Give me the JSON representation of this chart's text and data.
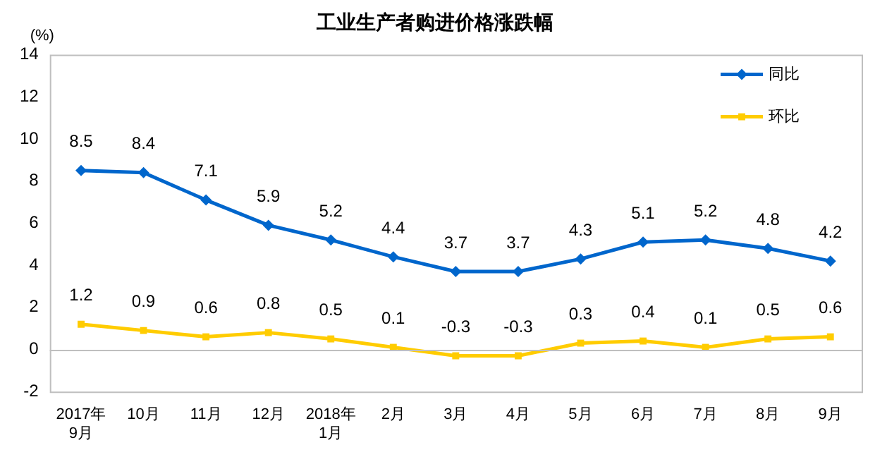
{
  "chart_data": {
    "type": "line",
    "title": "工业生产者购进价格涨跌幅",
    "ylabel": "(%)",
    "categories": [
      "2017年\n9月",
      "10月",
      "11月",
      "12月",
      "2018年\n1月",
      "2月",
      "3月",
      "4月",
      "5月",
      "6月",
      "7月",
      "8月",
      "9月"
    ],
    "series": [
      {
        "name": "同比",
        "color": "#0066cc",
        "marker": "diamond",
        "values": [
          8.5,
          8.4,
          7.1,
          5.9,
          5.2,
          4.4,
          3.7,
          3.7,
          4.3,
          5.1,
          5.2,
          4.8,
          4.2
        ]
      },
      {
        "name": "环比",
        "color": "#ffcc00",
        "marker": "square",
        "values": [
          1.2,
          0.9,
          0.6,
          0.8,
          0.5,
          0.1,
          -0.3,
          -0.3,
          0.3,
          0.4,
          0.1,
          0.5,
          0.6
        ]
      }
    ],
    "ylim": [
      -2,
      14
    ],
    "yticks": [
      -2,
      0,
      2,
      4,
      6,
      8,
      10,
      12,
      14
    ],
    "grid": false,
    "ref_lines": [
      {
        "axis": "y",
        "value": 0,
        "color": "#bfbfbf"
      }
    ],
    "legend": "top right",
    "data_labels": true,
    "line_style": "solid"
  }
}
